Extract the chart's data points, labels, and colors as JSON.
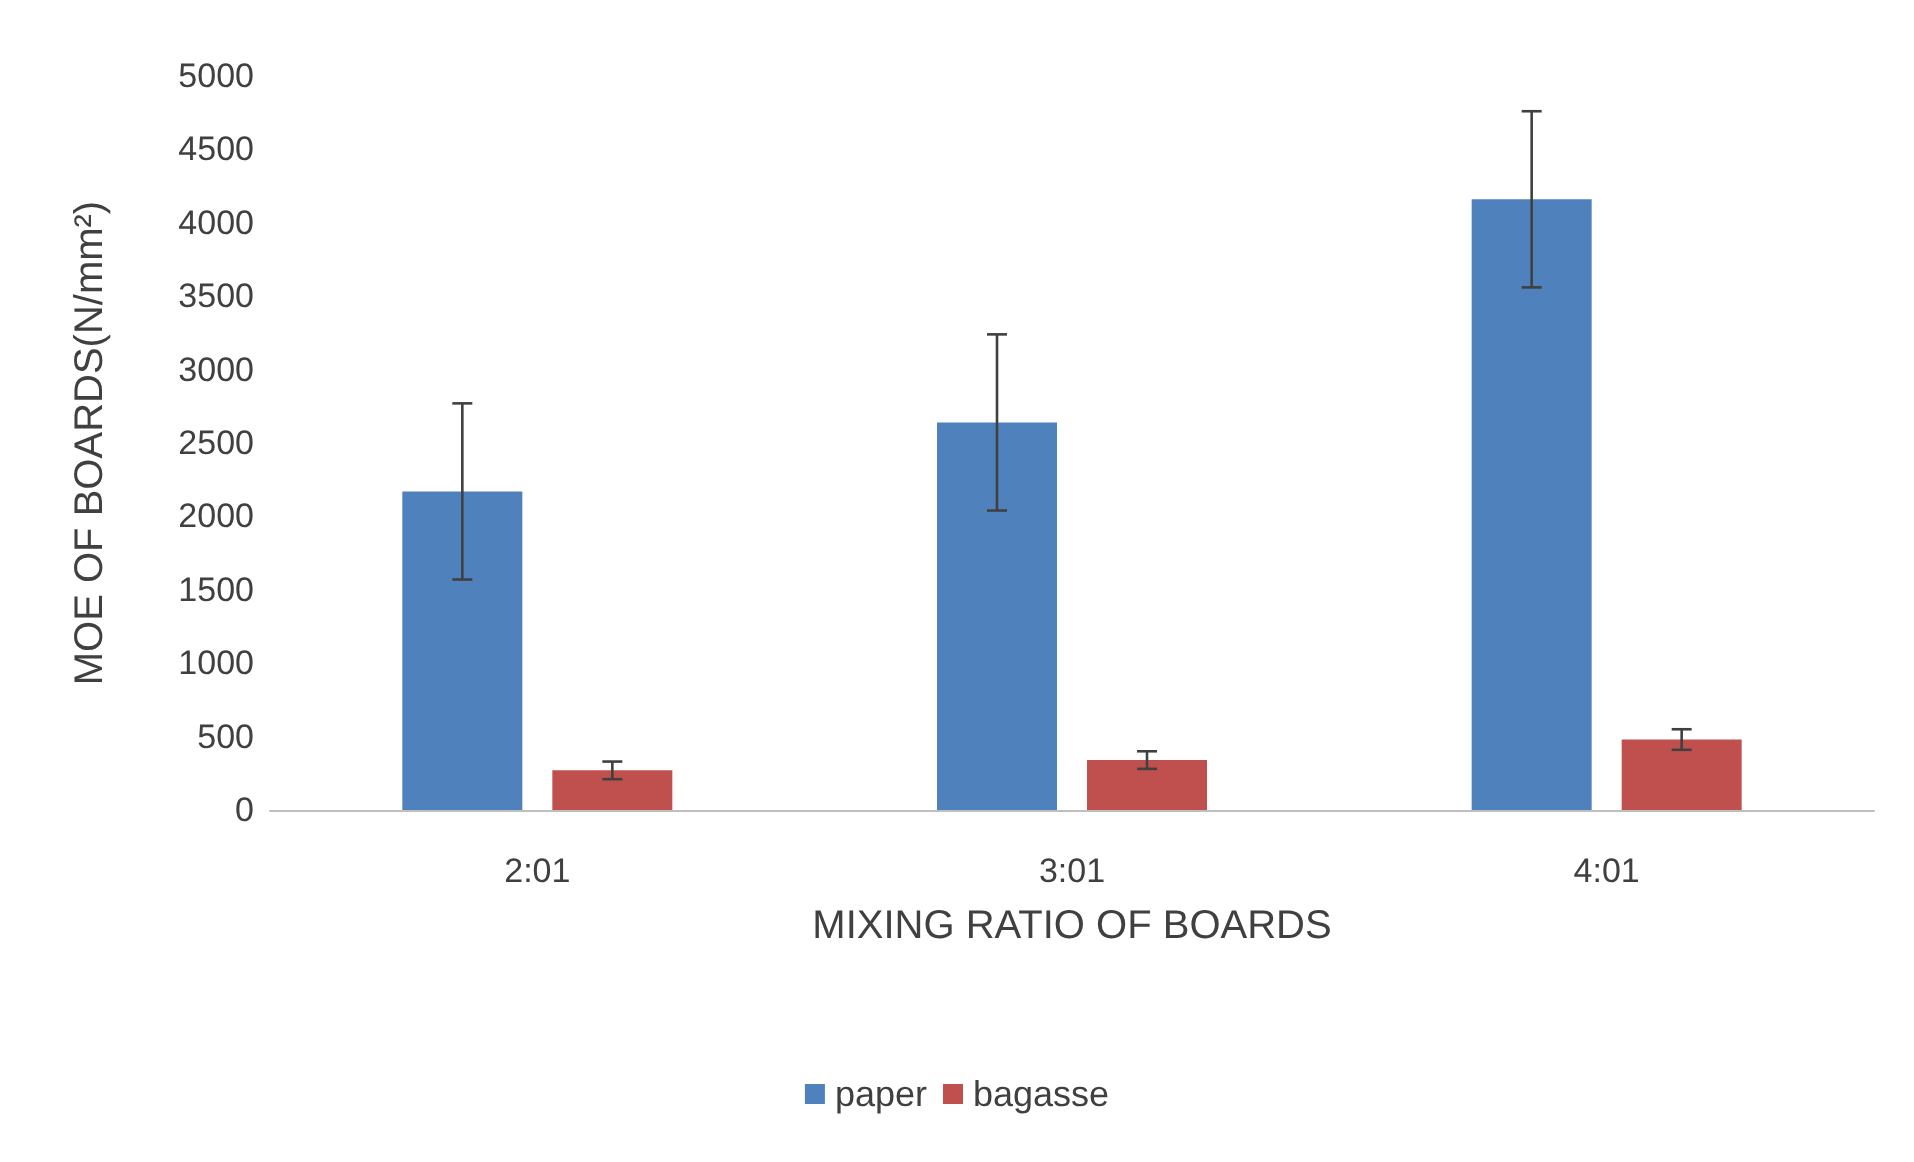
{
  "chart_data": {
    "type": "bar",
    "xlabel": "MIXING RATIO OF BOARDS",
    "ylabel": "MOE OF BOARDS(N/mm²)",
    "categories": [
      "2:01",
      "3:01",
      "4:01"
    ],
    "series": [
      {
        "name": "paper",
        "color": "#4f81bd",
        "values": [
          2170,
          2640,
          4160
        ],
        "errors": [
          600,
          600,
          600
        ]
      },
      {
        "name": "bagasse",
        "color": "#c0504d",
        "values": [
          270,
          340,
          480
        ],
        "errors": [
          60,
          60,
          70
        ]
      }
    ],
    "ylim": [
      0,
      5000
    ],
    "yticks": [
      0,
      500,
      1000,
      1500,
      2000,
      2500,
      3000,
      3500,
      4000,
      4500,
      5000
    ],
    "grid": false,
    "legend": "bottom"
  }
}
